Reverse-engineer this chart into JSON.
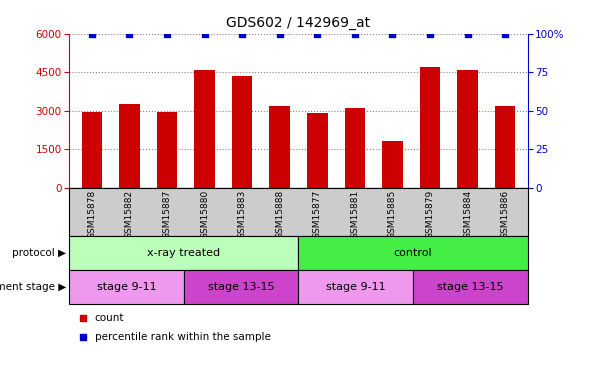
{
  "title": "GDS602 / 142969_at",
  "samples": [
    "GSM15878",
    "GSM15882",
    "GSM15887",
    "GSM15880",
    "GSM15883",
    "GSM15888",
    "GSM15877",
    "GSM15881",
    "GSM15885",
    "GSM15879",
    "GSM15884",
    "GSM15886"
  ],
  "counts": [
    2950,
    3250,
    2950,
    4600,
    4350,
    3200,
    2900,
    3100,
    1800,
    4700,
    4600,
    3200
  ],
  "percentile_ranks": [
    100,
    100,
    100,
    100,
    100,
    100,
    100,
    100,
    100,
    100,
    100,
    100
  ],
  "bar_color": "#cc0000",
  "dot_color": "#0000cc",
  "ylim_left": [
    0,
    6000
  ],
  "ylim_right": [
    0,
    100
  ],
  "yticks_left": [
    0,
    1500,
    3000,
    4500,
    6000
  ],
  "yticks_right": [
    0,
    25,
    50,
    75,
    100
  ],
  "protocol_groups": [
    {
      "label": "x-ray treated",
      "start": 0,
      "end": 5,
      "color": "#bbffbb"
    },
    {
      "label": "control",
      "start": 6,
      "end": 11,
      "color": "#44ee44"
    }
  ],
  "stage_groups": [
    {
      "label": "stage 9-11",
      "start": 0,
      "end": 2,
      "color": "#ee99ee"
    },
    {
      "label": "stage 13-15",
      "start": 3,
      "end": 5,
      "color": "#cc44cc"
    },
    {
      "label": "stage 9-11",
      "start": 6,
      "end": 8,
      "color": "#ee99ee"
    },
    {
      "label": "stage 13-15",
      "start": 9,
      "end": 11,
      "color": "#cc44cc"
    }
  ],
  "legend_count_color": "#cc0000",
  "legend_pct_color": "#0000cc",
  "left_tick_color": "#cc0000",
  "right_tick_color": "#0000cc",
  "tick_area_color": "#cccccc"
}
